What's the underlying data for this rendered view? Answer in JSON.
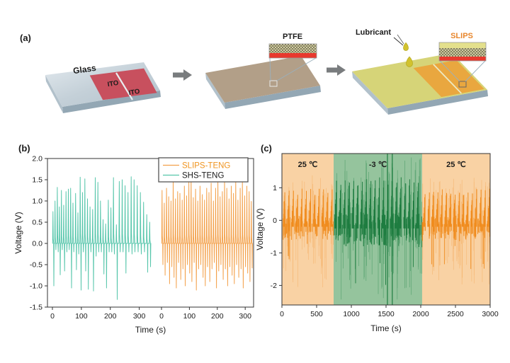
{
  "figure": {
    "panel_a_label": "(a)",
    "panel_b_label": "(b)",
    "panel_c_label": "(c)"
  },
  "panel_a": {
    "step1": {
      "substrate_label": "Glass",
      "electrode1_label": "ITO",
      "electrode2_label": "ITO"
    },
    "step2": {
      "coating_label": "PTFE"
    },
    "step3": {
      "lubricant_label": "Lubricant",
      "surface_label": "SLIPS"
    },
    "colors": {
      "glass_top": "#ccd6dd",
      "ito_red": "#c8505e",
      "ptfe_tan": "#b29f88",
      "slips_top_yellow": "#d6d478",
      "slips_electrode_orange": "#e9a73f",
      "lubricant_drop": "#d2c22e",
      "inset_red": "#e8392e",
      "inset_khaki": "#d6d0a6",
      "arrow_gray": "#797c7e",
      "slips_text_orange": "#e8862c"
    }
  },
  "chart_data": [
    {
      "id": "b",
      "type": "line",
      "title": "",
      "xlabel": "Time (s)",
      "ylabel": "Voltage (V)",
      "ylim": [
        -1.5,
        2.0
      ],
      "ytick_values": [
        2.0,
        1.5,
        1.0,
        0.5,
        0.0,
        -0.5,
        -1.0,
        -1.5
      ],
      "ytick_labels": [
        "2.0",
        "1.5",
        "1.0",
        "0.5",
        "0.0",
        "-0.5",
        "-1.0",
        "-1.5"
      ],
      "axis_note": "two concatenated time segments sharing one y axis",
      "series": [
        {
          "name": "SHS-TENG",
          "color": "#57c6ab",
          "segment": 0,
          "xlim": [
            0,
            345
          ],
          "xtick_values": [
            0,
            100,
            200,
            300
          ],
          "xtick_labels": [
            "0",
            "100",
            "200",
            "300"
          ],
          "spikes_t_peak_dip": [
            [
              2,
              0.75,
              -1.0
            ],
            [
              9,
              1.0,
              -0.15
            ],
            [
              17,
              1.32,
              -0.2
            ],
            [
              24,
              0.86,
              -0.74
            ],
            [
              31,
              1.25,
              -0.15
            ],
            [
              39,
              0.9,
              -0.65
            ],
            [
              47,
              1.22,
              -0.2
            ],
            [
              55,
              1.28,
              -0.15
            ],
            [
              63,
              1.3,
              -1.05
            ],
            [
              71,
              0.95,
              -0.2
            ],
            [
              80,
              1.18,
              -0.62
            ],
            [
              88,
              0.72,
              -0.25
            ],
            [
              96,
              1.56,
              -1.1
            ],
            [
              104,
              1.2,
              -0.2
            ],
            [
              112,
              1.52,
              -0.65
            ],
            [
              121,
              1.05,
              -1.08
            ],
            [
              130,
              0.86,
              -0.2
            ],
            [
              139,
              0.8,
              -1.12
            ],
            [
              148,
              1.55,
              -0.3
            ],
            [
              157,
              1.44,
              -0.2
            ],
            [
              166,
              1.0,
              -0.2
            ],
            [
              175,
              0.56,
              -0.72
            ],
            [
              184,
              0.46,
              -1.05
            ],
            [
              193,
              1.02,
              -0.2
            ],
            [
              202,
              0.84,
              -0.2
            ],
            [
              211,
              1.55,
              -0.25
            ],
            [
              221,
              0.44,
              -1.32
            ],
            [
              231,
              1.46,
              -0.2
            ],
            [
              241,
              1.5,
              -0.2
            ],
            [
              251,
              1.36,
              -0.7
            ],
            [
              261,
              1.2,
              -0.2
            ],
            [
              272,
              1.57,
              -0.25
            ],
            [
              282,
              1.5,
              -0.2
            ],
            [
              293,
              1.36,
              -0.2
            ],
            [
              304,
              1.2,
              -0.25
            ],
            [
              315,
              0.97,
              -0.2
            ],
            [
              326,
              0.68,
              -0.68
            ],
            [
              336,
              0.5,
              -0.55
            ]
          ]
        },
        {
          "name": "SLIPS-TENG",
          "color": "#f3a14b",
          "segment": 1,
          "xlim": [
            0,
            330
          ],
          "xtick_values": [
            0,
            100,
            200,
            300
          ],
          "xtick_labels": [
            "0",
            "100",
            "200",
            "300"
          ],
          "spikes_t_peak_dip": [
            [
              2,
              1.25,
              -0.5
            ],
            [
              10,
              0.95,
              -0.75
            ],
            [
              18,
              1.3,
              -0.45
            ],
            [
              26,
              1.1,
              -0.95
            ],
            [
              34,
              1.0,
              -0.55
            ],
            [
              42,
              1.52,
              -0.8
            ],
            [
              50,
              1.05,
              -1.05
            ],
            [
              58,
              1.22,
              -0.45
            ],
            [
              66,
              1.18,
              -0.85
            ],
            [
              74,
              1.02,
              -0.6
            ],
            [
              82,
              1.35,
              -1.0
            ],
            [
              90,
              1.12,
              -0.5
            ],
            [
              98,
              1.45,
              -0.7
            ],
            [
              106,
              1.55,
              -0.9
            ],
            [
              114,
              1.08,
              -0.45
            ],
            [
              122,
              1.28,
              -1.1
            ],
            [
              130,
              1.0,
              -0.6
            ],
            [
              138,
              1.35,
              -0.5
            ],
            [
              146,
              1.15,
              -0.8
            ],
            [
              154,
              1.02,
              -1.0
            ],
            [
              162,
              1.3,
              -0.55
            ],
            [
              170,
              1.2,
              -0.9
            ],
            [
              178,
              1.42,
              -0.6
            ],
            [
              186,
              1.0,
              -0.45
            ],
            [
              194,
              1.3,
              -1.05
            ],
            [
              202,
              1.48,
              -0.65
            ],
            [
              210,
              1.1,
              -0.5
            ],
            [
              218,
              1.22,
              -0.85
            ],
            [
              226,
              1.52,
              -0.6
            ],
            [
              234,
              1.3,
              -1.0
            ],
            [
              242,
              1.05,
              -0.55
            ],
            [
              250,
              1.35,
              -0.75
            ],
            [
              258,
              1.18,
              -0.95
            ],
            [
              266,
              1.45,
              -0.5
            ],
            [
              274,
              1.02,
              -0.8
            ],
            [
              282,
              1.3,
              -0.6
            ],
            [
              290,
              1.48,
              -1.05
            ],
            [
              298,
              1.12,
              -0.55
            ],
            [
              306,
              1.35,
              -0.7
            ],
            [
              314,
              1.22,
              -0.9
            ],
            [
              322,
              0.99,
              -0.58
            ]
          ]
        }
      ],
      "legend": {
        "position": "top-right",
        "entries": [
          {
            "label": "SLIPS-TENG",
            "line_color": "#f3a14b",
            "text_color": "#f0941f"
          },
          {
            "label": "SHS-TENG",
            "line_color": "#57c6ab",
            "text_color": "#1a1a1a"
          }
        ]
      }
    },
    {
      "id": "c",
      "type": "line",
      "title": "",
      "xlabel": "Time (s)",
      "ylabel": "Voltage (V)",
      "xlim": [
        0,
        3000
      ],
      "xtick_values": [
        0,
        500,
        1000,
        1500,
        2000,
        2500,
        3000
      ],
      "xtick_labels": [
        "0",
        "500",
        "1000",
        "1500",
        "2000",
        "2500",
        "3000"
      ],
      "ylim": [
        -2.6,
        2.05
      ],
      "ytick_values": [
        1,
        0,
        -1,
        -2
      ],
      "ytick_labels": [
        "1",
        "0",
        "-1",
        "-2"
      ],
      "regions": [
        {
          "label": "25 ℃",
          "t_start": 0,
          "t_end": 745,
          "bg_color": "#f9d2a4",
          "trace_color": "#f08c1e",
          "trace_light_color": "#f6b671",
          "peak_pos": 1.45,
          "peak_neg": -2.1,
          "baseline": -0.2,
          "core_scale": 1.0,
          "seed": 101,
          "tall_spikes": []
        },
        {
          "label": "-3 ℃",
          "t_start": 745,
          "t_end": 2020,
          "bg_color": "#95c49d",
          "trace_color": "#1e7d40",
          "trace_light_color": "#53a06c",
          "peak_pos": 1.95,
          "peak_neg": -2.45,
          "baseline": -0.25,
          "core_scale": 1.35,
          "seed": 202,
          "tall_spikes": [
            1520,
            1590
          ]
        },
        {
          "label": "25 ℃",
          "t_start": 2020,
          "t_end": 3000,
          "bg_color": "#f9d2a4",
          "trace_color": "#f08c1e",
          "trace_light_color": "#f6b671",
          "peak_pos": 1.4,
          "peak_neg": -2.0,
          "baseline": -0.2,
          "core_scale": 1.0,
          "seed": 303,
          "tall_spikes": []
        }
      ]
    }
  ]
}
